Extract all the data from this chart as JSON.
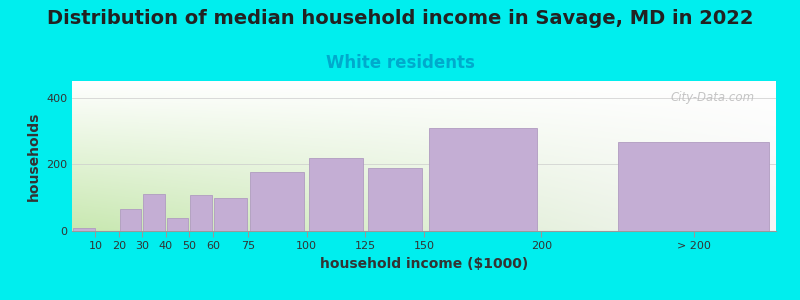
{
  "title": "Distribution of median household income in Savage, MD in 2022",
  "subtitle": "White residents",
  "xlabel": "household income ($1000)",
  "ylabel": "households",
  "bg_color": "#00EEEE",
  "bar_color": "#C4AED4",
  "bar_edge_color": "#B09CC0",
  "categories": [
    "10",
    "20",
    "30",
    "40",
    "50",
    "60",
    "75",
    "100",
    "125",
    "150",
    "200",
    "> 200"
  ],
  "values": [
    10,
    0,
    65,
    110,
    38,
    108,
    100,
    178,
    218,
    188,
    308,
    268
  ],
  "bar_lefts": [
    0,
    10,
    20,
    30,
    40,
    50,
    60,
    75,
    100,
    125,
    150,
    230
  ],
  "bar_widths": [
    10,
    10,
    10,
    10,
    10,
    10,
    15,
    25,
    25,
    25,
    50,
    70
  ],
  "xlim": [
    0,
    300
  ],
  "ylim": [
    0,
    450
  ],
  "yticks": [
    0,
    200,
    400
  ],
  "xtick_positions": [
    10,
    20,
    30,
    40,
    50,
    60,
    75,
    100,
    125,
    150,
    200,
    265
  ],
  "xtick_labels": [
    "10",
    "20",
    "30",
    "40",
    "50",
    "60",
    "75",
    "100",
    "125",
    "150",
    "200",
    "> 200"
  ],
  "title_fontsize": 14,
  "subtitle_fontsize": 12,
  "subtitle_color": "#00AACC",
  "watermark": "City-Data.com",
  "grad_left_color": "#c8e8b0",
  "grad_right_color": "#f5f5f5",
  "grad_top_color": "#ffffff"
}
